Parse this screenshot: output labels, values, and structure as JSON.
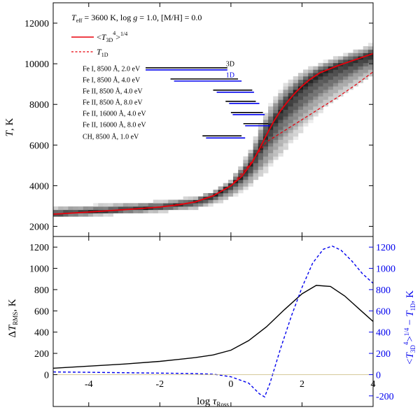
{
  "chart_data": [
    {
      "type": "area",
      "panel": "top",
      "title": "",
      "header": {
        "t_sym": "T",
        "t_sub": "eff",
        "t_rest": " = 3600 K, log ",
        "g_sym": "g",
        "g_rest": " = 1.0, [M/H] = 0.0"
      },
      "legend": [
        {
          "name": "<T_3D^4>^1/4",
          "line": "solid",
          "color": "#e8000b",
          "parts": {
            "open": "<",
            "T": "T",
            "sub": "3D",
            "sup": "4",
            "close": ">",
            "sup2": "1/4"
          }
        },
        {
          "name": "T_1D",
          "line": "dashed",
          "color": "#e8000b",
          "parts": {
            "T": "T",
            "sub": "1D"
          }
        }
      ],
      "xlabel": "log τ_Ross",
      "ylabel": "T, K",
      "ylabel_parts": {
        "T": "T",
        "rest": ", K"
      },
      "xlim": [
        -5,
        4
      ],
      "ylim": [
        1500,
        13000
      ],
      "xticks": [
        -4,
        -2,
        0,
        2,
        4
      ],
      "yticks": [
        2000,
        4000,
        6000,
        8000,
        10000,
        12000
      ],
      "series": [
        {
          "name": "<T_3D^4>^1/4",
          "color": "#e8000b",
          "style": "solid",
          "x": [
            -5,
            -4.5,
            -4,
            -3.5,
            -3,
            -2.5,
            -2,
            -1.5,
            -1,
            -0.5,
            0,
            0.3,
            0.6,
            0.8,
            1.0,
            1.2,
            1.4,
            1.6,
            1.8,
            2.0,
            2.2,
            2.5,
            3.0,
            3.5,
            4.0
          ],
          "y": [
            2600,
            2650,
            2700,
            2760,
            2820,
            2880,
            2950,
            3050,
            3200,
            3500,
            4000,
            4450,
            5150,
            5800,
            6500,
            7150,
            7700,
            8150,
            8550,
            8900,
            9200,
            9550,
            9900,
            10200,
            10500
          ]
        },
        {
          "name": "T_1D",
          "color": "#e8000b",
          "style": "dashed",
          "x": [
            -5,
            -4,
            -3,
            -2,
            -1,
            -0.5,
            0,
            0.5,
            1.0,
            1.5,
            2.0,
            2.5,
            3.0,
            3.5,
            4.0
          ],
          "y": [
            2600,
            2700,
            2820,
            2950,
            3200,
            3500,
            4000,
            5000,
            6150,
            6700,
            7250,
            7800,
            8350,
            8950,
            9600
          ]
        }
      ],
      "density_band": {
        "x": [
          -5,
          -4,
          -3,
          -2,
          -1,
          -0.5,
          0,
          0.5,
          1.0,
          1.5,
          2.0,
          2.5,
          3.0,
          3.5,
          4.0
        ],
        "y_low": [
          2400,
          2500,
          2600,
          2700,
          2850,
          3050,
          3400,
          3900,
          4700,
          5700,
          6700,
          7600,
          8300,
          8900,
          9400
        ],
        "y_high": [
          2950,
          3050,
          3150,
          3250,
          3450,
          3750,
          4300,
          5600,
          7700,
          8950,
          9650,
          10050,
          10350,
          10650,
          11000
        ]
      },
      "formation_bars": [
        {
          "label": "Fe I, 8500 Å, 2.0 eV",
          "x3d": [
            -2.4,
            -0.1
          ],
          "x1d": [
            -2.4,
            -0.1
          ],
          "t": 9750,
          "tags": [
            "3D",
            "1D"
          ]
        },
        {
          "label": "Fe I, 8500 Å, 4.0 eV",
          "x3d": [
            -1.7,
            0.2
          ],
          "x1d": [
            -1.6,
            0.3
          ],
          "t": 9200
        },
        {
          "label": "Fe II, 8500 Å, 4.0 eV",
          "x3d": [
            -0.5,
            0.6
          ],
          "x1d": [
            -0.4,
            0.65
          ],
          "t": 8650
        },
        {
          "label": "Fe II, 8500 Å, 8.0 eV",
          "x3d": [
            -0.15,
            0.7
          ],
          "x1d": [
            -0.05,
            0.8
          ],
          "t": 8100
        },
        {
          "label": "Fe II, 16000 Å, 4.0 eV",
          "x3d": [
            0.0,
            0.9
          ],
          "x1d": [
            0.05,
            0.95
          ],
          "t": 7550
        },
        {
          "label": "Fe II, 16000 Å, 8.0 eV",
          "x3d": [
            0.35,
            1.05
          ],
          "x1d": [
            0.4,
            1.1
          ],
          "t": 7000
        },
        {
          "label": "CH, 8500 Å, 1.0 eV",
          "x3d": [
            -0.8,
            0.3
          ],
          "x1d": [
            -0.7,
            0.4
          ],
          "t": 6400
        }
      ]
    },
    {
      "type": "line",
      "panel": "bottom",
      "xlabel": "log τ_Ross",
      "xlabel_parts": {
        "log": "log ",
        "tau": "τ",
        "sub": "Ross"
      },
      "ylabel": "ΔT_RMS, K",
      "ylabel_parts": {
        "delta": "Δ",
        "T": "T",
        "sub": "RMS",
        "rest": ", K"
      },
      "ylabel_right": "<T_3D^4>^1/4 − T_1D, K",
      "ylabel_right_parts": {
        "open": "<",
        "T": "T",
        "sub": "3D",
        "sup": "4",
        "close": ">",
        "sup2": "1/4",
        "minus": " − ",
        "T2": "T",
        "sub2": "1D",
        "rest": ", K"
      },
      "xlim": [
        -5,
        4
      ],
      "ylim": [
        -300,
        1300
      ],
      "xticks": [
        -4,
        -2,
        0,
        2,
        4
      ],
      "yticks": [
        0,
        200,
        400,
        600,
        800,
        1000,
        1200
      ],
      "yticks_right": [
        -200,
        0,
        200,
        400,
        600,
        800,
        1000,
        1200
      ],
      "series": [
        {
          "name": "ΔT_RMS",
          "color": "#000000",
          "style": "solid",
          "axis": "left",
          "x": [
            -5,
            -4,
            -3,
            -2,
            -1,
            -0.5,
            0,
            0.5,
            1.0,
            1.5,
            2.0,
            2.4,
            2.8,
            3.2,
            3.6,
            4.0
          ],
          "y": [
            60,
            80,
            100,
            125,
            160,
            185,
            230,
            320,
            450,
            610,
            760,
            840,
            830,
            740,
            620,
            500
          ]
        },
        {
          "name": "<T_3D^4>^1/4 − T_1D",
          "color": "#0000ee",
          "style": "dashed",
          "axis": "right",
          "x": [
            -5,
            -4,
            -3,
            -2,
            -1,
            -0.5,
            0,
            0.5,
            0.8,
            0.95,
            1.1,
            1.4,
            1.7,
            2.0,
            2.3,
            2.6,
            2.85,
            3.1,
            3.4,
            3.7,
            4.0
          ],
          "y": [
            25,
            22,
            18,
            14,
            10,
            4,
            -20,
            -80,
            -180,
            -210,
            -80,
            250,
            550,
            820,
            1050,
            1180,
            1210,
            1170,
            1070,
            950,
            860
          ]
        },
        {
          "name": "zero",
          "color": "#c8b978",
          "style": "solid",
          "axis": "left",
          "x": [
            -5,
            4
          ],
          "y": [
            0,
            0
          ]
        }
      ]
    }
  ]
}
